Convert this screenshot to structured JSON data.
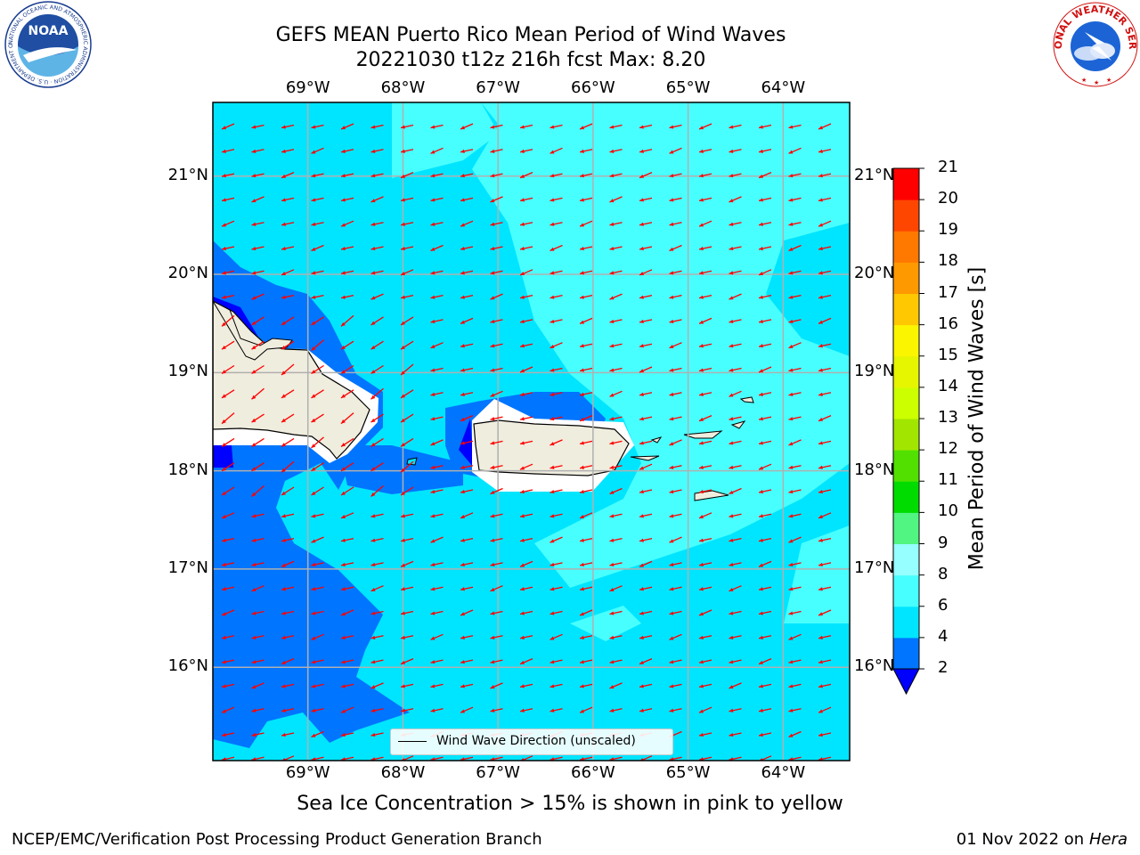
{
  "header": {
    "title_line1": "GEFS MEAN Puerto Rico Mean Period of Wind Waves",
    "title_line2": "20221030 t12z 216h fcst   Max: 8.20"
  },
  "logos": {
    "left": "NOAA",
    "left_ring_text": "NATIONAL OCEANIC AND ATMOSPHERIC ADMINISTRATION · U.S. DEPARTMENT OF COMMERCE",
    "right_ring_text": "NATIONAL WEATHER SERVICE"
  },
  "map": {
    "extent_lon": [
      -70,
      -63.3
    ],
    "extent_lat": [
      15.05,
      21.75
    ],
    "lon_ticks": [
      "69°W",
      "68°W",
      "67°W",
      "66°W",
      "65°W",
      "64°W"
    ],
    "lat_ticks": [
      "21°N",
      "20°N",
      "19°N",
      "18°N",
      "17°N",
      "16°N"
    ],
    "field": "Mean Period of Wind Waves",
    "wind_wave_direction": "toward west-southwest",
    "legend_label": "Wind Wave Direction (unscaled)",
    "arrow_color": "#ff0000"
  },
  "colorbar": {
    "label": "Mean Period of Wind Waves [s]",
    "ticks": [
      "2",
      "4",
      "6",
      "8",
      "9",
      "10",
      "11",
      "12",
      "13",
      "14",
      "15",
      "16",
      "17",
      "18",
      "19",
      "20",
      "21"
    ],
    "colors": [
      "#0075ff",
      "#00e5ff",
      "#48ffff",
      "#96ffff",
      "#50f582",
      "#00dc00",
      "#51e000",
      "#a2e600",
      "#ccff00",
      "#e6f500",
      "#fbf500",
      "#ffc800",
      "#ff9900",
      "#ff7800",
      "#ff4600",
      "#ff0000"
    ],
    "under_color": "#0000ff",
    "land_color": "#efedde"
  },
  "notes": {
    "ice": "Sea Ice Concentration > 15% is shown in pink to yellow"
  },
  "footer": {
    "left": "NCEP/EMC/Verification Post Processing Product Generation Branch",
    "date": "01 Nov 2022 on",
    "host": "Hera"
  }
}
